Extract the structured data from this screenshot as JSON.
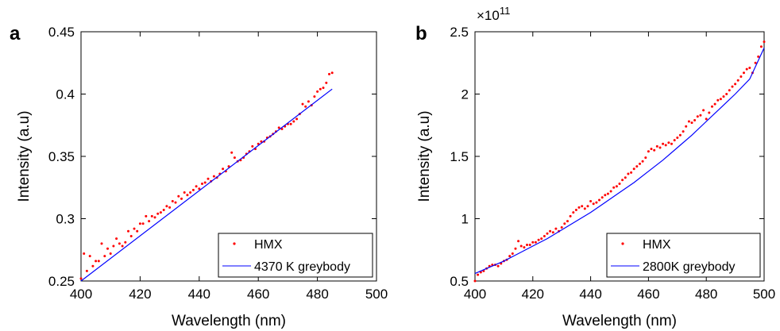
{
  "chart_data": [
    {
      "type": "scatter",
      "panel_label": "a",
      "xlabel": "Wavelength (nm)",
      "ylabel": "Intensity (a.u)",
      "xlim": [
        400,
        500
      ],
      "ylim": [
        0.25,
        0.45
      ],
      "xticks": [
        "400",
        "420",
        "440",
        "460",
        "480",
        "500"
      ],
      "yticks": [
        "0.25",
        "0.3",
        "0.35",
        "0.4",
        "0.45"
      ],
      "xtick_values": [
        400,
        420,
        440,
        460,
        480,
        500
      ],
      "ytick_values": [
        0.25,
        0.3,
        0.35,
        0.4,
        0.45
      ],
      "legend_position": "bottom-right",
      "grid": false,
      "series": [
        {
          "name": "HMX",
          "kind": "scatter",
          "color": "#ff0000",
          "x": [
            400,
            401,
            402,
            403,
            404,
            405,
            406,
            407,
            408,
            409,
            410,
            411,
            412,
            413,
            414,
            415,
            416,
            417,
            418,
            419,
            420,
            421,
            422,
            423,
            424,
            425,
            426,
            427,
            428,
            429,
            430,
            431,
            432,
            433,
            434,
            435,
            436,
            437,
            438,
            439,
            440,
            441,
            442,
            443,
            444,
            445,
            446,
            447,
            448,
            449,
            450,
            451,
            452,
            453,
            454,
            455,
            456,
            457,
            458,
            459,
            460,
            461,
            462,
            463,
            464,
            465,
            466,
            467,
            468,
            469,
            470,
            471,
            472,
            473,
            474,
            475,
            476,
            477,
            478,
            479,
            480,
            481,
            482,
            483,
            484,
            485
          ],
          "y": [
            0.252,
            0.272,
            0.258,
            0.27,
            0.262,
            0.266,
            0.266,
            0.28,
            0.27,
            0.276,
            0.272,
            0.278,
            0.284,
            0.28,
            0.278,
            0.281,
            0.29,
            0.286,
            0.292,
            0.29,
            0.296,
            0.296,
            0.302,
            0.298,
            0.302,
            0.301,
            0.304,
            0.305,
            0.307,
            0.31,
            0.309,
            0.314,
            0.313,
            0.318,
            0.316,
            0.321,
            0.319,
            0.321,
            0.323,
            0.326,
            0.324,
            0.328,
            0.329,
            0.332,
            0.33,
            0.334,
            0.333,
            0.336,
            0.34,
            0.338,
            0.342,
            0.353,
            0.349,
            0.346,
            0.347,
            0.349,
            0.352,
            0.354,
            0.358,
            0.356,
            0.36,
            0.362,
            0.362,
            0.365,
            0.366,
            0.368,
            0.37,
            0.373,
            0.372,
            0.374,
            0.376,
            0.376,
            0.378,
            0.38,
            0.384,
            0.392,
            0.39,
            0.394,
            0.391,
            0.398,
            0.402,
            0.404,
            0.405,
            0.409,
            0.416,
            0.417
          ]
        },
        {
          "name": "4370 K greybody",
          "kind": "line",
          "color": "#0000ff",
          "x": [
            400,
            485
          ],
          "y": [
            0.25,
            0.404
          ]
        }
      ]
    },
    {
      "type": "scatter",
      "panel_label": "b",
      "exponent_label": "×10",
      "exponent_power": "11",
      "xlabel": "Wavelength (nm)",
      "ylabel": "Intensity (a.u)",
      "xlim": [
        400,
        500
      ],
      "ylim": [
        0.5,
        2.5
      ],
      "xticks": [
        "400",
        "420",
        "440",
        "460",
        "480",
        "500"
      ],
      "yticks": [
        "0.5",
        "1",
        "1.5",
        "2",
        "2.5"
      ],
      "xtick_values": [
        400,
        420,
        440,
        460,
        480,
        500
      ],
      "ytick_values": [
        0.5,
        1.0,
        1.5,
        2.0,
        2.5
      ],
      "legend_position": "bottom-right",
      "grid": false,
      "series": [
        {
          "name": "HMX",
          "kind": "scatter",
          "color": "#ff0000",
          "x": [
            400,
            401,
            402,
            403,
            404,
            405,
            406,
            407,
            408,
            409,
            410,
            411,
            412,
            413,
            414,
            415,
            416,
            417,
            418,
            419,
            420,
            421,
            422,
            423,
            424,
            425,
            426,
            427,
            428,
            429,
            430,
            431,
            432,
            433,
            434,
            435,
            436,
            437,
            438,
            439,
            440,
            441,
            442,
            443,
            444,
            445,
            446,
            447,
            448,
            449,
            450,
            451,
            452,
            453,
            454,
            455,
            456,
            457,
            458,
            459,
            460,
            461,
            462,
            463,
            464,
            465,
            466,
            467,
            468,
            469,
            470,
            471,
            472,
            473,
            474,
            475,
            476,
            477,
            478,
            479,
            480,
            481,
            482,
            483,
            484,
            485,
            486,
            487,
            488,
            489,
            490,
            491,
            492,
            493,
            494,
            495,
            496,
            497,
            498,
            499,
            500
          ],
          "y": [
            0.5,
            0.55,
            0.57,
            0.58,
            0.6,
            0.62,
            0.63,
            0.63,
            0.62,
            0.64,
            0.66,
            0.67,
            0.7,
            0.72,
            0.76,
            0.82,
            0.78,
            0.77,
            0.79,
            0.79,
            0.81,
            0.81,
            0.83,
            0.84,
            0.86,
            0.88,
            0.9,
            0.89,
            0.92,
            0.9,
            0.93,
            0.96,
            0.98,
            1.02,
            1.05,
            1.07,
            1.09,
            1.1,
            1.08,
            1.1,
            1.14,
            1.12,
            1.13,
            1.15,
            1.17,
            1.19,
            1.2,
            1.22,
            1.25,
            1.26,
            1.28,
            1.31,
            1.33,
            1.36,
            1.37,
            1.4,
            1.42,
            1.44,
            1.46,
            1.49,
            1.54,
            1.56,
            1.55,
            1.58,
            1.57,
            1.6,
            1.59,
            1.61,
            1.6,
            1.63,
            1.65,
            1.67,
            1.7,
            1.74,
            1.78,
            1.77,
            1.79,
            1.82,
            1.83,
            1.87,
            1.8,
            1.85,
            1.9,
            1.92,
            1.95,
            1.96,
            1.98,
            2.0,
            2.03,
            2.06,
            2.08,
            2.11,
            2.14,
            2.17,
            2.2,
            2.21,
            2.17,
            2.25,
            2.3,
            2.38,
            2.42
          ]
        },
        {
          "name": "2800K greybody",
          "kind": "line",
          "color": "#0000ff",
          "x": [
            400,
            405,
            410,
            415,
            420,
            425,
            430,
            435,
            440,
            445,
            450,
            455,
            460,
            465,
            470,
            475,
            480,
            485,
            490,
            495,
            500
          ],
          "y": [
            0.56,
            0.61,
            0.66,
            0.72,
            0.78,
            0.84,
            0.91,
            0.98,
            1.05,
            1.13,
            1.21,
            1.29,
            1.38,
            1.47,
            1.57,
            1.67,
            1.78,
            1.89,
            2.0,
            2.12,
            2.37
          ]
        }
      ]
    }
  ]
}
